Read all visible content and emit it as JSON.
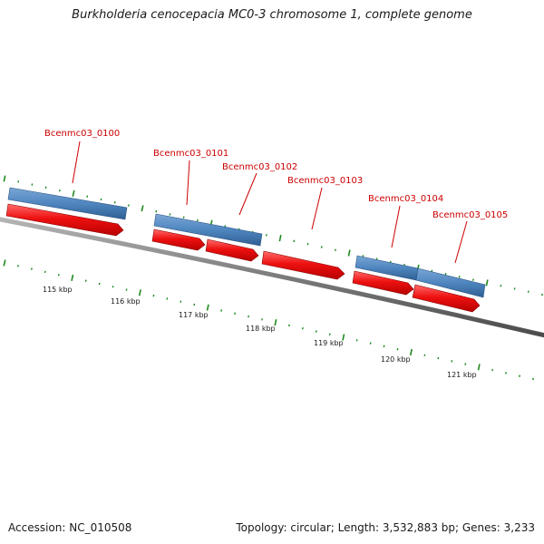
{
  "title": "Burkholderia cenocepacia MC0-3 chromosome 1, complete genome",
  "footer": {
    "accession": "Accession: NC_010508",
    "summary": "Topology: circular; Length: 3,532,883 bp; Genes: 3,233"
  },
  "colors": {
    "cds": "#ee1111",
    "gene": "#4f86bf",
    "backbone": "#777777",
    "tick": "#1f8a1f",
    "label": "#cc0000"
  },
  "scale_labels": [
    "115 kbp",
    "116 kbp",
    "117 kbp",
    "118 kbp",
    "119 kbp",
    "120 kbp",
    "121 kbp"
  ],
  "genes": [
    {
      "id": "Bcenmc03_0100"
    },
    {
      "id": "Bcenmc03_0101"
    },
    {
      "id": "Bcenmc03_0102"
    },
    {
      "id": "Bcenmc03_0103"
    },
    {
      "id": "Bcenmc03_0104"
    },
    {
      "id": "Bcenmc03_0105"
    }
  ]
}
